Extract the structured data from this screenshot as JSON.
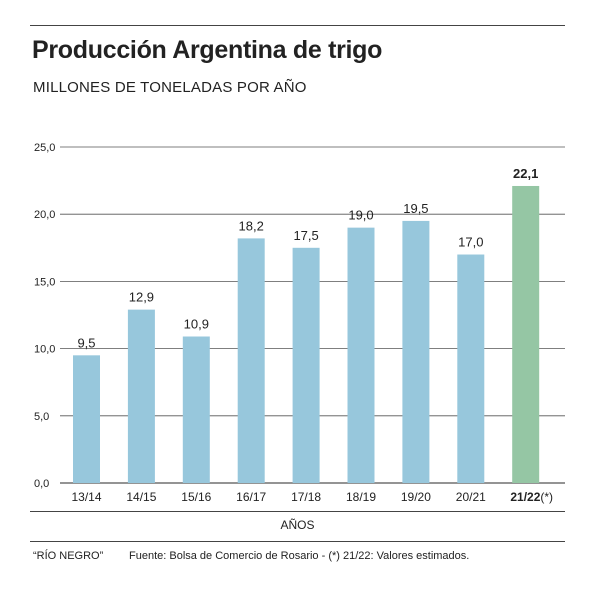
{
  "title": "Producción Argentina de trigo",
  "subtitle": "MILLONES DE TONELADAS POR AÑO",
  "footer": {
    "credit": "“RÍO NEGRO”",
    "source": "Fuente: Bolsa de Comercio de Rosario - (*) 21/22: Valores estimados."
  },
  "colors": {
    "bar": "#97c7dc",
    "highlight_bar": "#95c6a4",
    "grid": "#555555",
    "text": "#222222"
  },
  "chart_data": {
    "type": "bar",
    "title": "Producción Argentina de trigo",
    "subtitle": "MILLONES DE TONELADAS POR AÑO",
    "xlabel": "AÑOS",
    "ylabel": "",
    "categories": [
      "13/14",
      "14/15",
      "15/16",
      "16/17",
      "17/18",
      "18/19",
      "19/20",
      "20/21",
      "21/22"
    ],
    "category_suffixes": [
      "",
      "",
      "",
      "",
      "",
      "",
      "",
      "",
      "(*)"
    ],
    "values": [
      9.5,
      12.9,
      10.9,
      18.2,
      17.5,
      19.0,
      19.5,
      17.0,
      22.1
    ],
    "value_labels": [
      "9,5",
      "12,9",
      "10,9",
      "18,2",
      "17,5",
      "19,0",
      "19,5",
      "17,0",
      "22,1"
    ],
    "highlight_index": 8,
    "ylim": [
      0,
      25
    ],
    "yticks": [
      0,
      5,
      10,
      15,
      20,
      25
    ],
    "ytick_labels": [
      "0,0",
      "5,0",
      "10,0",
      "15,0",
      "20,0",
      "25,0"
    ],
    "grid": true,
    "legend": "none"
  }
}
